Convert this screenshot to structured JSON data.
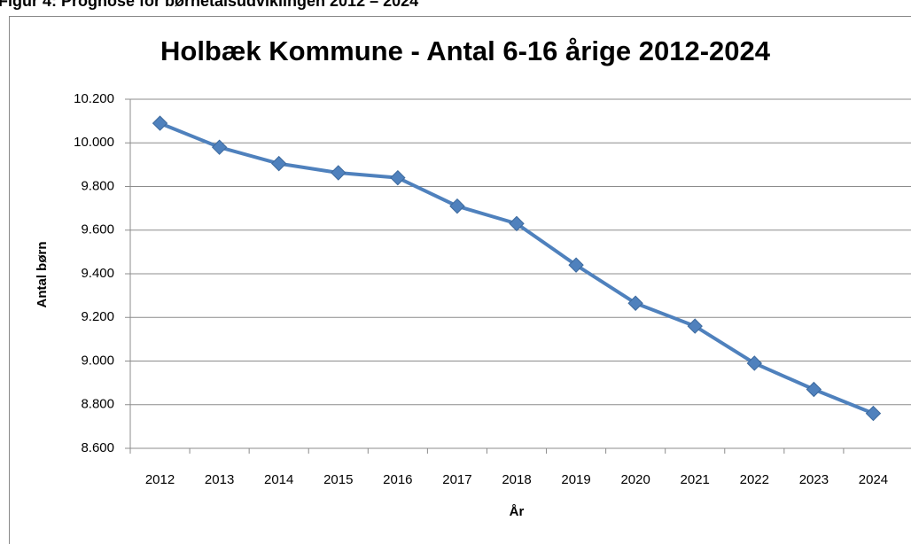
{
  "caption": "Figur 4: Prognose for børnetalsudviklingen 2012 – 2024",
  "chart_data": {
    "type": "line",
    "title": "Holbæk Kommune - Antal 6-16 årige 2012-2024",
    "y_label": "Antal børn",
    "x_label": "År",
    "categories": [
      "2012",
      "2013",
      "2014",
      "2015",
      "2016",
      "2017",
      "2018",
      "2019",
      "2020",
      "2021",
      "2022",
      "2023",
      "2024"
    ],
    "series": [
      {
        "name": "Antal 6-16 årige",
        "color": "#4f81bd",
        "values": [
          10090,
          9980,
          9905,
          9863,
          9840,
          9710,
          9630,
          9440,
          9265,
          9160,
          8990,
          8870,
          8760
        ]
      }
    ],
    "ylim": [
      8600,
      10200
    ],
    "yticks": [
      {
        "value": 8600,
        "label": "8.600"
      },
      {
        "value": 8800,
        "label": "8.800"
      },
      {
        "value": 9000,
        "label": "9.000"
      },
      {
        "value": 9200,
        "label": "9.200"
      },
      {
        "value": 9400,
        "label": "9.400"
      },
      {
        "value": 9600,
        "label": "9.600"
      },
      {
        "value": 9800,
        "label": "9.800"
      },
      {
        "value": 10000,
        "label": "10.000"
      },
      {
        "value": 10200,
        "label": "10.200"
      }
    ],
    "grid": true
  }
}
